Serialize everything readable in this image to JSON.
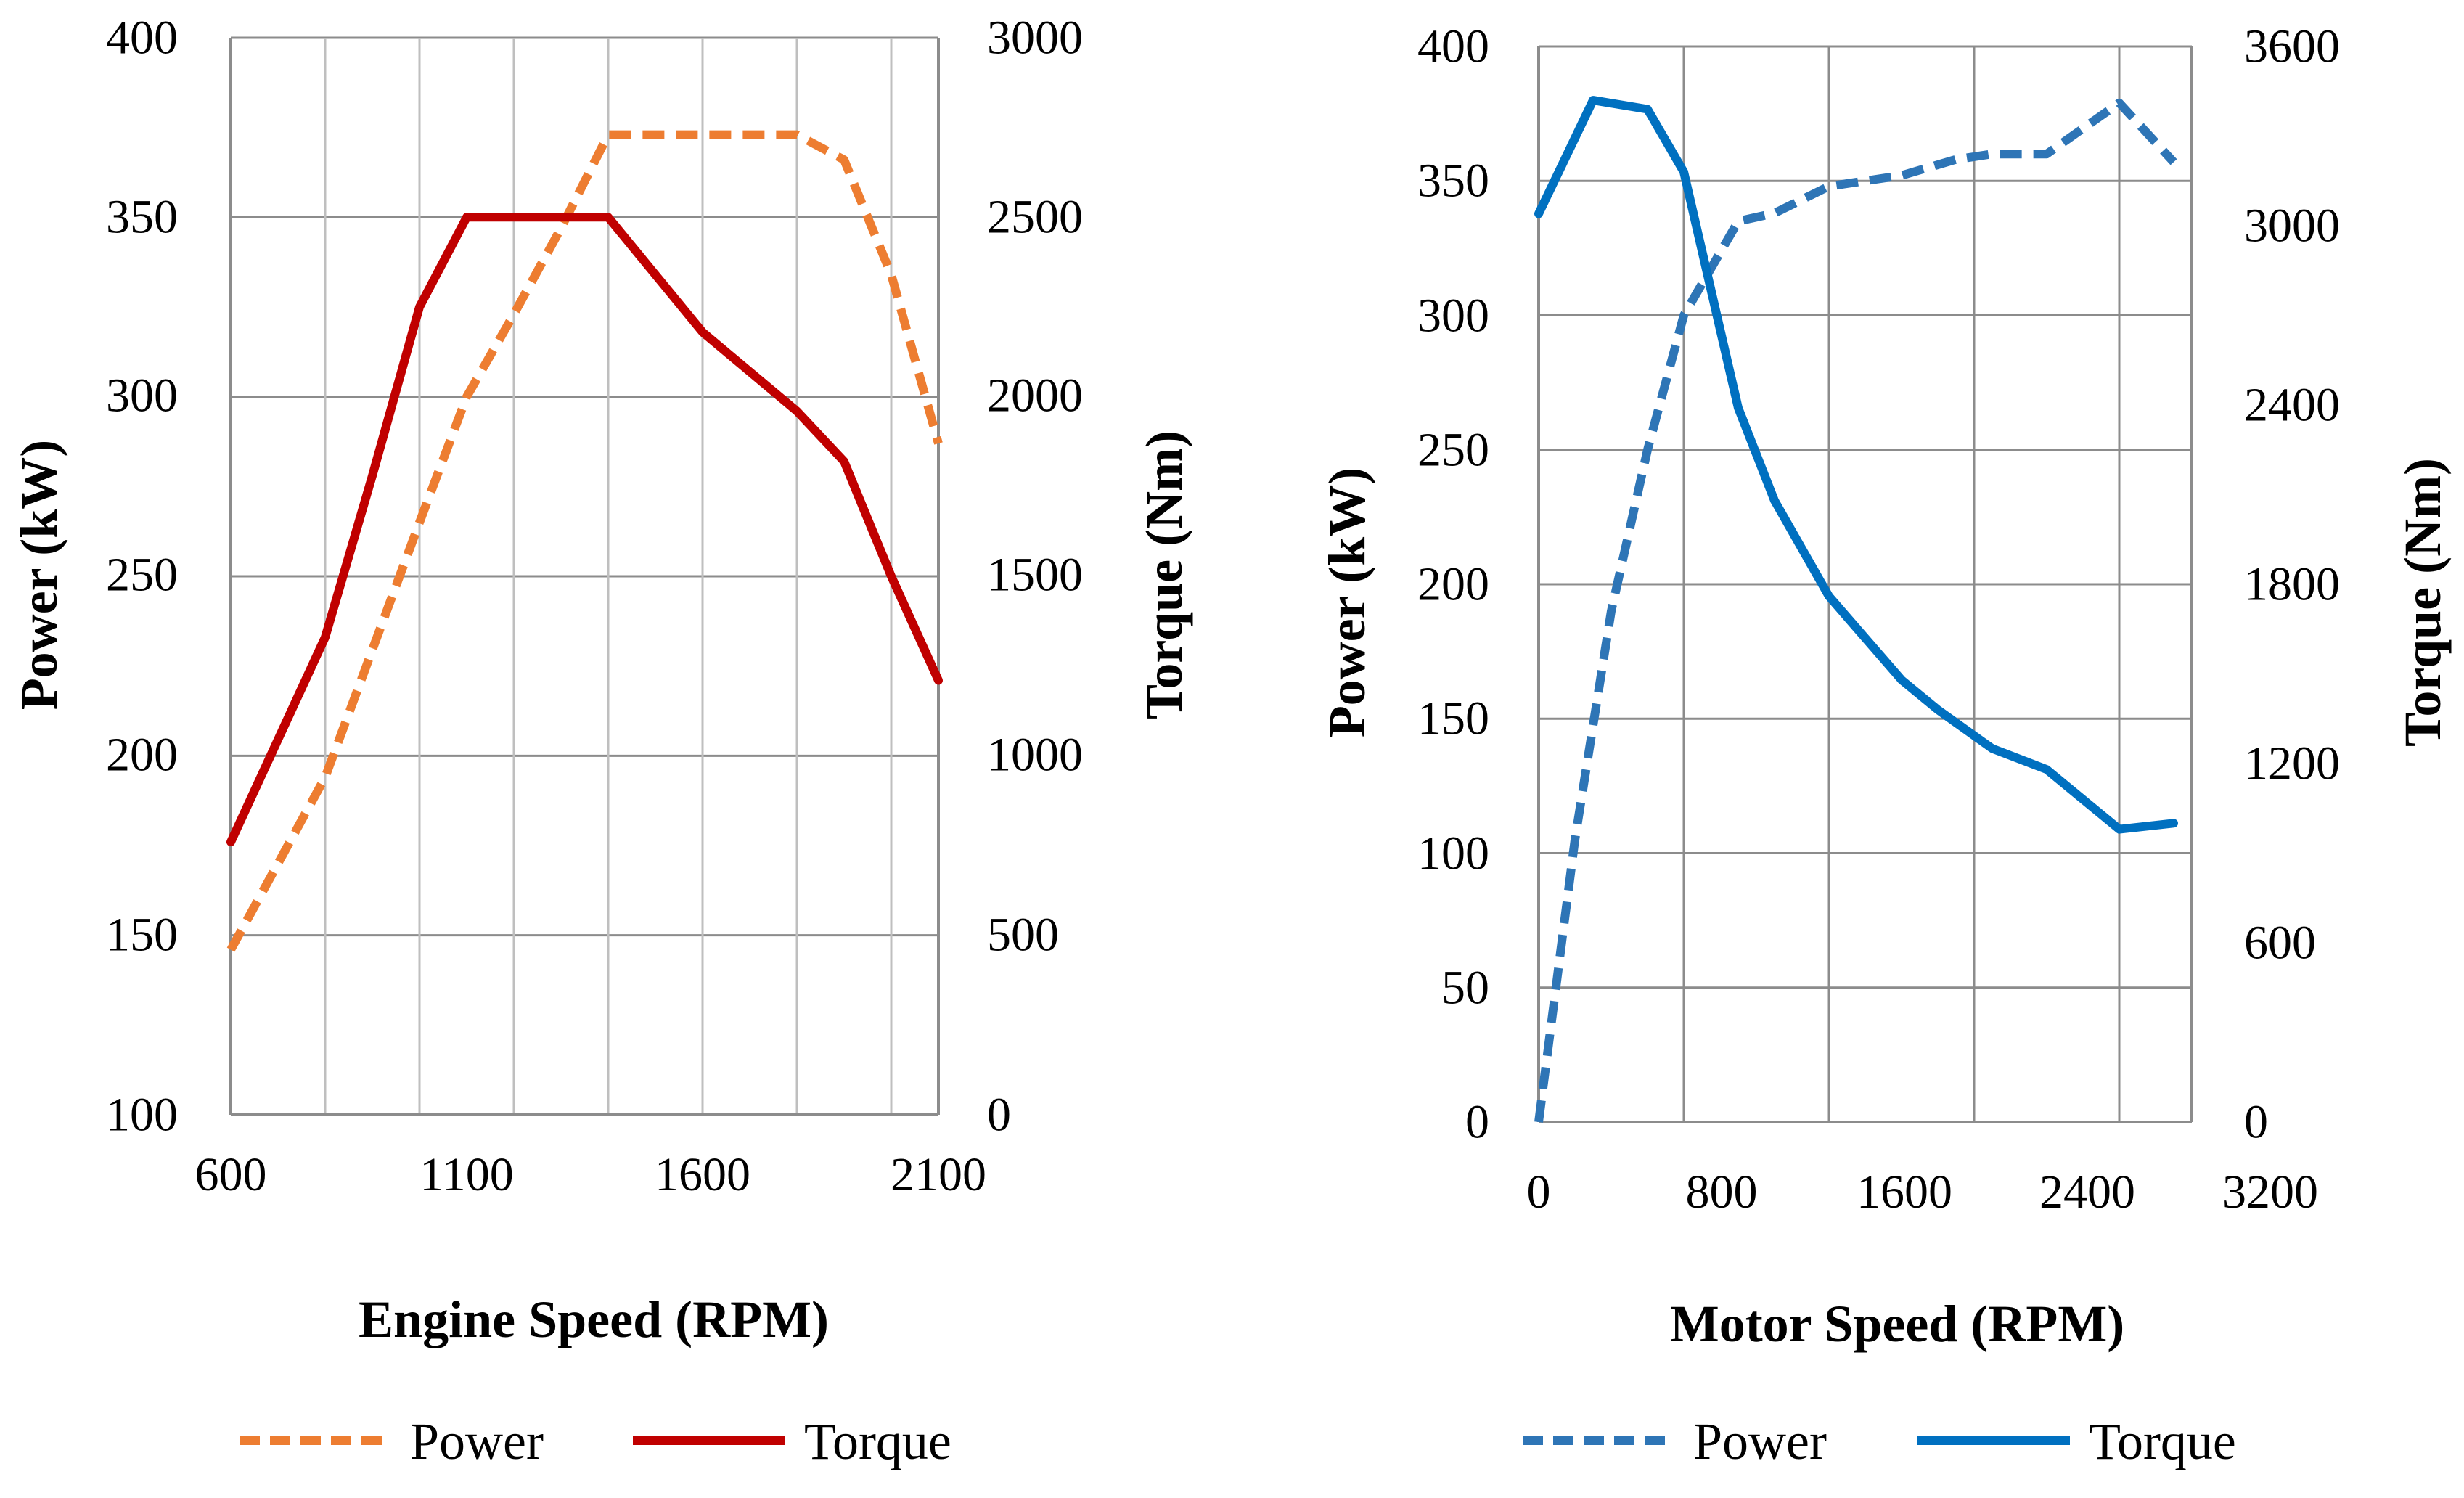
{
  "chart_data": [
    {
      "name": "engine",
      "type": "line",
      "x": [
        600,
        800,
        1000,
        1100,
        1400,
        1600,
        1800,
        1900,
        2000,
        2100
      ],
      "xlim": [
        600,
        2100
      ],
      "x_ticks": [
        "600",
        "1100",
        "1600",
        "2100"
      ],
      "x_tick_values": [
        600,
        1100,
        1600,
        2100
      ],
      "x_minor_grid": [
        800,
        1000,
        1200,
        1400,
        1600,
        1800,
        2000
      ],
      "xlabel": "Engine Speed (RPM)",
      "ylabel": "Power (kW)",
      "ylim": [
        100,
        400
      ],
      "y_ticks": [
        "100",
        "150",
        "200",
        "250",
        "300",
        "350",
        "400"
      ],
      "y_tick_values": [
        100,
        150,
        200,
        250,
        300,
        350,
        400
      ],
      "y2label": "Torque (Nm)",
      "y2lim": [
        0,
        3000
      ],
      "y2_ticks": [
        "0",
        "500",
        "1000",
        "1500",
        "2000",
        "2500",
        "3000"
      ],
      "y2_tick_values": [
        0,
        500,
        1000,
        1500,
        2000,
        2500,
        3000
      ],
      "series": [
        {
          "name": "Power",
          "axis": "left",
          "style": "dashed",
          "color": "#ED7D31",
          "x": [
            600,
            800,
            1000,
            1100,
            1200,
            1300,
            1400,
            1500,
            1600,
            1800,
            1900,
            2000,
            2100
          ],
          "values": [
            146,
            194,
            265,
            300,
            323,
            347,
            373,
            373,
            373,
            373,
            366,
            334,
            287
          ]
        },
        {
          "name": "Torque",
          "axis": "right",
          "style": "solid",
          "color": "#C00000",
          "x": [
            600,
            800,
            900,
            1000,
            1100,
            1400,
            1600,
            1800,
            1900,
            2000,
            2100
          ],
          "values": [
            760,
            1330,
            1780,
            2250,
            2500,
            2500,
            2180,
            1960,
            1820,
            1500,
            1210
          ]
        }
      ],
      "legend": [
        "Power",
        "Torque"
      ],
      "legend_position": "bottom"
    },
    {
      "name": "motor",
      "type": "line",
      "xlim": [
        0,
        3600
      ],
      "x_ticks": [
        "0",
        "800",
        "1600",
        "2400",
        "3200"
      ],
      "x_tick_values": [
        0,
        800,
        1600,
        2400,
        3200
      ],
      "x_grid": [
        800,
        1600,
        2400,
        3200
      ],
      "xlabel": "Motor Speed (RPM)",
      "ylabel": "Power (kW)",
      "ylim": [
        0,
        400
      ],
      "y_ticks": [
        "0",
        "50",
        "100",
        "150",
        "200",
        "250",
        "300",
        "350",
        "400"
      ],
      "y_tick_values": [
        0,
        50,
        100,
        150,
        200,
        250,
        300,
        350,
        400
      ],
      "y2label": "Torque (Nm)",
      "y2lim": [
        0,
        3600
      ],
      "y2_ticks": [
        "0",
        "600",
        "1200",
        "1800",
        "2400",
        "3000",
        "3600"
      ],
      "y2_tick_values": [
        0,
        600,
        1200,
        1800,
        2400,
        3000,
        3600
      ],
      "series": [
        {
          "name": "Power",
          "axis": "left",
          "style": "dashed",
          "color": "#2E75B6",
          "x": [
            0,
            200,
            400,
            600,
            800,
            1100,
            1300,
            1600,
            2000,
            2300,
            2500,
            2800,
            3200,
            3500
          ],
          "values": [
            0,
            105,
            190,
            250,
            300,
            335,
            338,
            348,
            352,
            358,
            360,
            360,
            379,
            357
          ]
        },
        {
          "name": "Torque",
          "axis": "right",
          "style": "solid",
          "color": "#0070C0",
          "x": [
            0,
            300,
            600,
            800,
            1100,
            1300,
            1600,
            2000,
            2200,
            2500,
            2800,
            3200,
            3500
          ],
          "values": [
            3040,
            3420,
            3390,
            3180,
            2390,
            2080,
            1760,
            1480,
            1380,
            1250,
            1180,
            980,
            1000
          ]
        }
      ],
      "legend": [
        "Power",
        "Torque"
      ],
      "legend_position": "bottom"
    }
  ]
}
